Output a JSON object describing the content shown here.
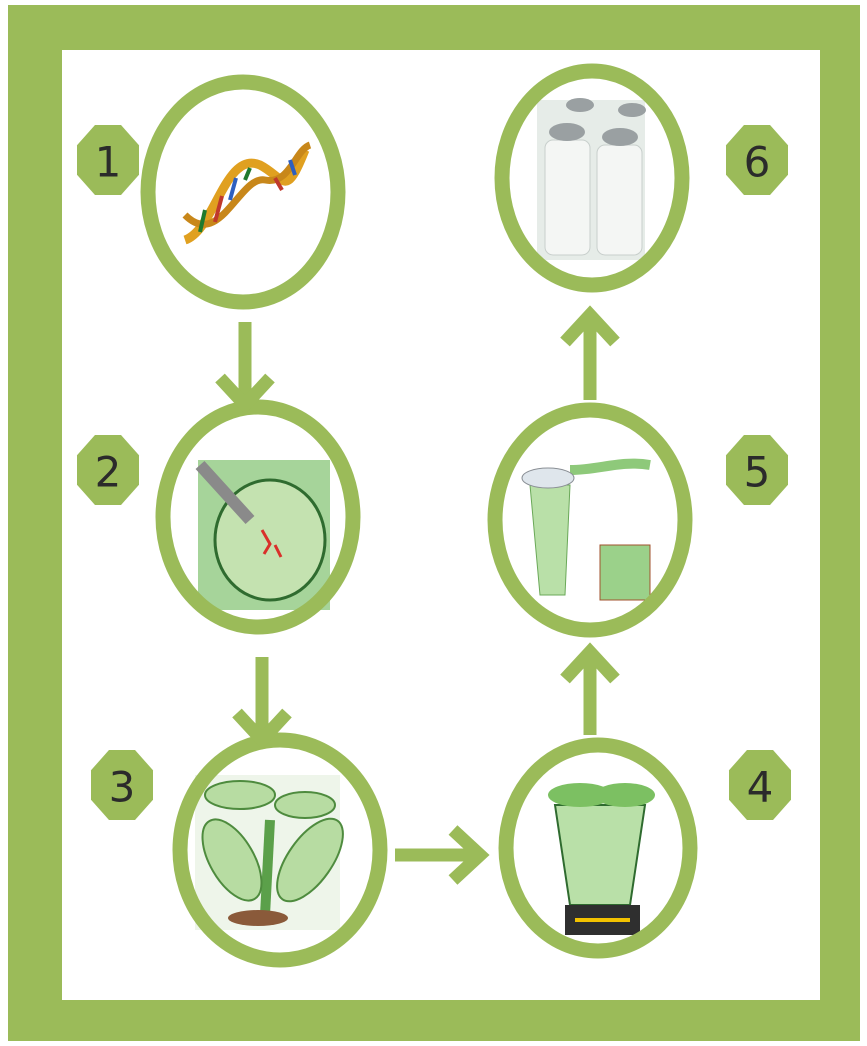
{
  "nodes": [
    {
      "label": "1"
    },
    {
      "label": "2"
    },
    {
      "label": "3"
    },
    {
      "label": "4"
    },
    {
      "label": "5"
    },
    {
      "label": "6"
    }
  ]
}
